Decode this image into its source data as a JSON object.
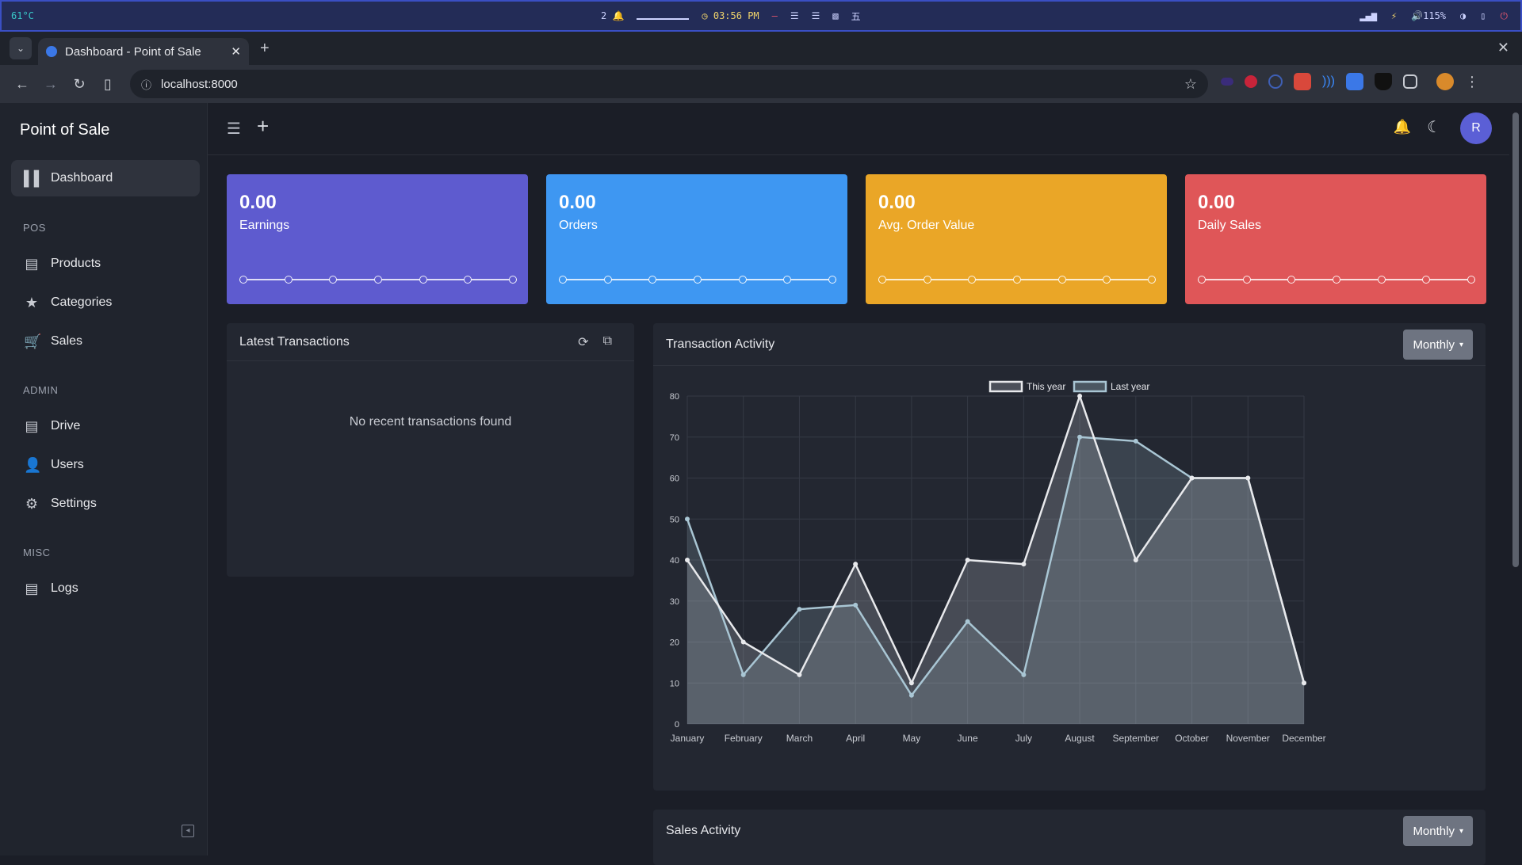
{
  "system_bar": {
    "temp": "61°C",
    "workspaces": "2",
    "clock": "03:56 PM",
    "layout_glyphs": [
      "—",
      "☰",
      "☰",
      "▧",
      "五"
    ],
    "volume": "115%"
  },
  "browser": {
    "tab_title": "Dashboard - Point of Sale",
    "url": "localhost:8000"
  },
  "sidebar": {
    "brand": "Point of Sale",
    "dashboard": "Dashboard",
    "section_pos": "POS",
    "products": "Products",
    "categories": "Categories",
    "sales": "Sales",
    "section_admin": "ADMIN",
    "drive": "Drive",
    "users": "Users",
    "settings": "Settings",
    "section_misc": "MISC",
    "logs": "Logs"
  },
  "topbar": {
    "avatar_initial": "R"
  },
  "stats": [
    {
      "value": "0.00",
      "label": "Earnings",
      "color": "#5e5bcf"
    },
    {
      "value": "0.00",
      "label": "Orders",
      "color": "#3e97f2"
    },
    {
      "value": "0.00",
      "label": "Avg. Order Value",
      "color": "#eaa627"
    },
    {
      "value": "0.00",
      "label": "Daily Sales",
      "color": "#df5658"
    }
  ],
  "transactions": {
    "title": "Latest Transactions",
    "empty": "No recent transactions found"
  },
  "activity": {
    "title": "Transaction Activity",
    "button": "Monthly"
  },
  "sales_activity": {
    "title": "Sales Activity",
    "button": "Monthly"
  },
  "chart_data": {
    "type": "line",
    "title": "",
    "xlabel": "",
    "ylabel": "",
    "x": [
      "January",
      "February",
      "March",
      "April",
      "May",
      "June",
      "July",
      "August",
      "September",
      "October",
      "November",
      "December"
    ],
    "series": [
      {
        "name": "This year",
        "values": [
          40,
          20,
          12,
          39,
          10,
          40,
          39,
          80,
          40,
          60,
          60,
          10
        ],
        "color": "#e8e9ec"
      },
      {
        "name": "Last year",
        "values": [
          50,
          12,
          28,
          29,
          7,
          25,
          12,
          70,
          69,
          60,
          60,
          10
        ],
        "color": "#a9c6d4"
      }
    ],
    "ylim": [
      0,
      80
    ],
    "yticks": [
      0,
      10,
      20,
      30,
      40,
      50,
      60,
      70,
      80
    ],
    "grid": true,
    "legend": "top-center"
  }
}
